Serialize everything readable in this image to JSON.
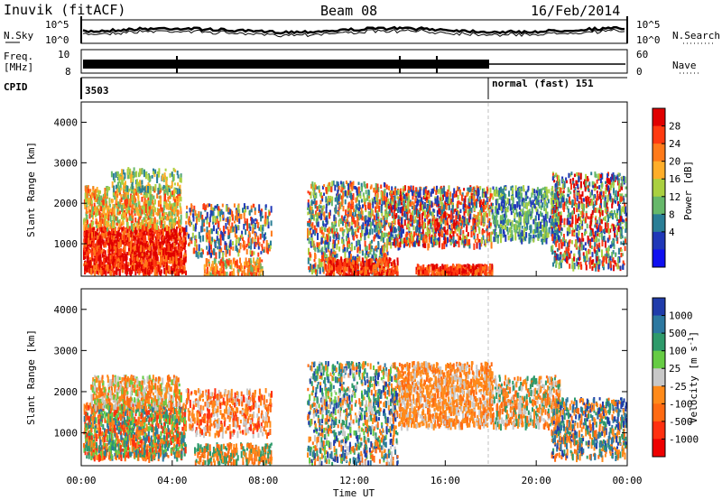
{
  "header": {
    "station": "Inuvik (fitACF)",
    "beam": "Beam 08",
    "date": "16/Feb/2014"
  },
  "strips": {
    "nsky_label": "N.Sky",
    "nsky_ticks": [
      "10^5",
      "10^0"
    ],
    "nsearch_label": "N.Search",
    "nsearch_ticks": [
      "10^5",
      "10^0"
    ],
    "freq_label": "Freq.",
    "freq_unit": "[MHz]",
    "freq_ticks": [
      "10",
      "8"
    ],
    "nave_label": "Nave",
    "nave_ticks": [
      "60",
      "0"
    ],
    "cpid_label": "CPID",
    "cpid_first": "3503",
    "cpid_second": "normal (fast) 151"
  },
  "chart_data": [
    {
      "type": "heatmap",
      "title": "",
      "xlabel": "",
      "ylabel": "Slant Range [km]",
      "ylim": [
        200,
        4500
      ],
      "yticks": [
        "1000",
        "2000",
        "3000",
        "4000"
      ],
      "colorbar": {
        "label": "Power [dB]",
        "ticks": [
          "28",
          "24",
          "20",
          "16",
          "12",
          "8",
          "4"
        ],
        "colors": [
          "#e00000",
          "#ff3a10",
          "#ff7a1a",
          "#ffae2a",
          "#aad040",
          "#66b86a",
          "#2a7e96",
          "#2038b8",
          "#1010f0"
        ]
      }
    },
    {
      "type": "heatmap",
      "title": "",
      "xlabel": "Time UT",
      "ylabel": "Slant Range [km]",
      "ylim": [
        200,
        4500
      ],
      "yticks": [
        "1000",
        "2000",
        "3000",
        "4000"
      ],
      "xticks": [
        "00:00",
        "04:00",
        "08:00",
        "12:00",
        "16:00",
        "20:00",
        "00:00"
      ],
      "colorbar": {
        "label": "Velocity [m s",
        "label_exp": "-1",
        "label_close": "]",
        "ticks": [
          "1000",
          "500",
          "100",
          "25",
          "-25",
          "-100",
          "-500",
          "-1000"
        ],
        "colors": [
          "#203caa",
          "#2c78a0",
          "#2e9a6a",
          "#66cc44",
          "#c8c8c8",
          "#ff8a1a",
          "#ff6a12",
          "#ff3010",
          "#ee0000"
        ]
      }
    }
  ]
}
